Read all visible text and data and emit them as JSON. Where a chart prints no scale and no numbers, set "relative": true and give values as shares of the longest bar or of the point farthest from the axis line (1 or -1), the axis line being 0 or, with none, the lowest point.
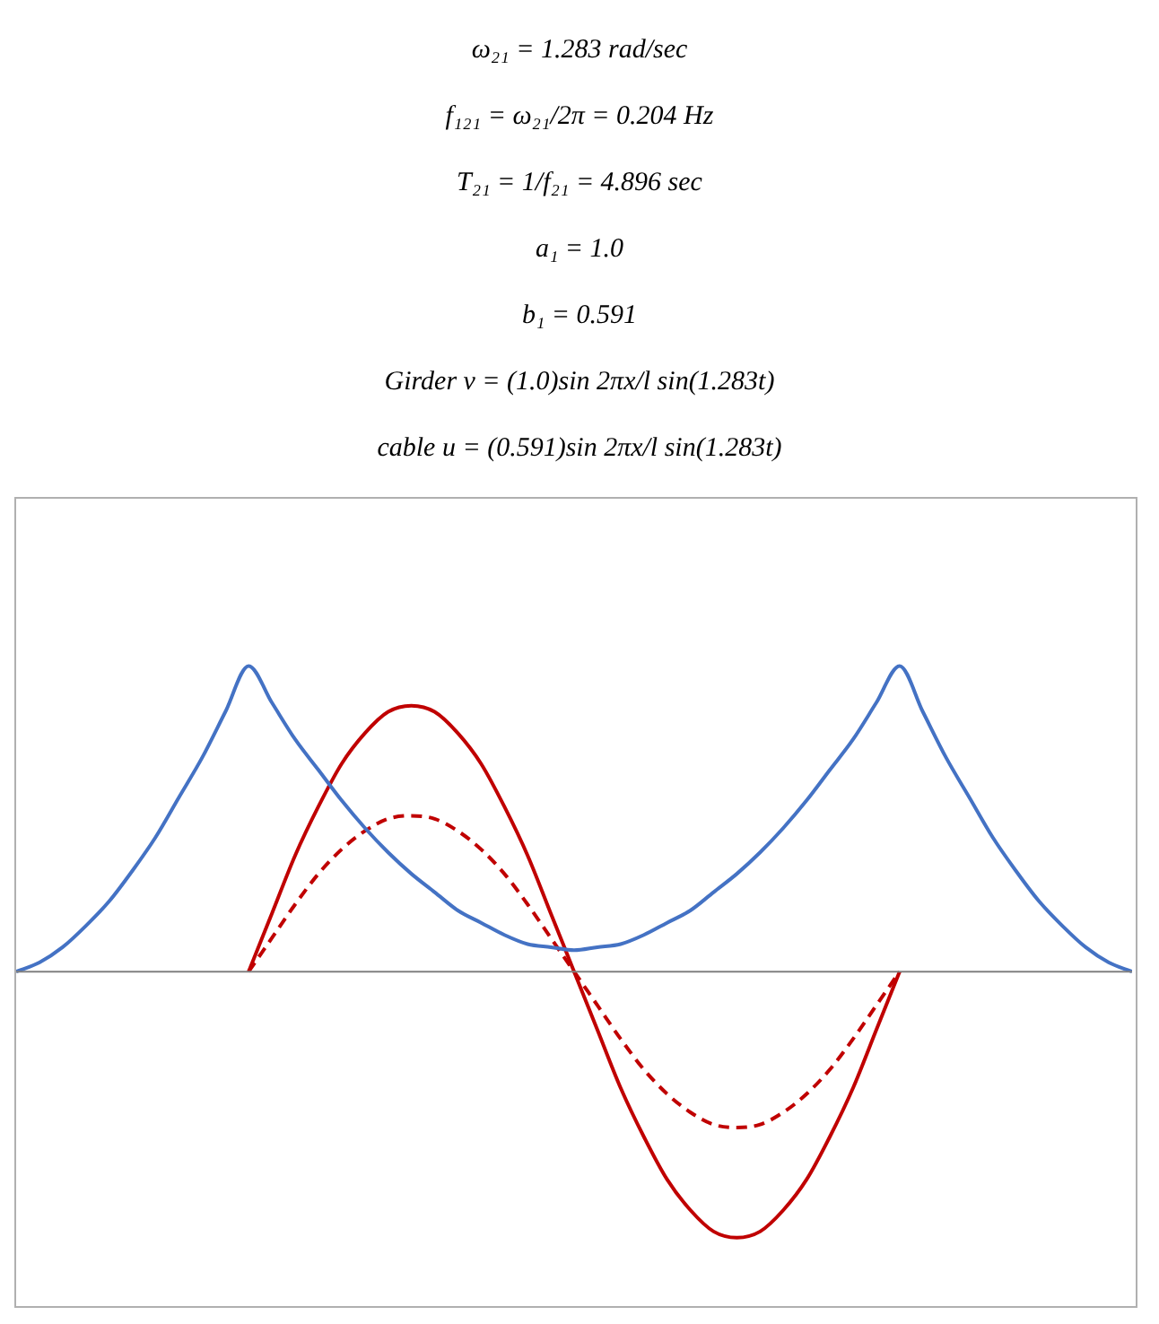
{
  "chart_data": {
    "type": "line",
    "relative": true,
    "annotations": [
      "ω₂₁ = 1.283 rad/sec",
      "f₁₂₁ = ω₂₁/2π = 0.204 Hz",
      "T₂₁ = 1/f₂₁ = 4.896 sec",
      "a₁ = 1.0",
      "b₁ = 0.591",
      "Girder v = (1.0)sin 2πx/l sin(1.283t)",
      "cable u = (0.591)sin 2πx/l sin(1.283t)"
    ],
    "categories": [
      null,
      null,
      null,
      null,
      null,
      null,
      null,
      null,
      null,
      null,
      null,
      null,
      null,
      null,
      null,
      null,
      null,
      null,
      null,
      null,
      null,
      null,
      null,
      null,
      null,
      null,
      null,
      null,
      null,
      null,
      null,
      null,
      null,
      null,
      null,
      null,
      null,
      null,
      null,
      null,
      null,
      null,
      null,
      null,
      null,
      null,
      null,
      null,
      null
    ],
    "marker": "none",
    "grid": false,
    "legend": false,
    "series": [
      {
        "color": "#4472c4",
        "line_style": "solid",
        "values": [
          0,
          0.03,
          0.08,
          0.15,
          0.23,
          0.33,
          0.44,
          0.57,
          0.7,
          0.85,
          1,
          0.88,
          0.76,
          0.66,
          0.56,
          0.47,
          0.39,
          0.32,
          0.26,
          0.2,
          0.16,
          0.12,
          0.09,
          0.08,
          0.07,
          0.08,
          0.09,
          0.12,
          0.16,
          0.2,
          0.26,
          0.32,
          0.39,
          0.47,
          0.56,
          0.66,
          0.76,
          0.88,
          1,
          0.85,
          0.7,
          0.57,
          0.44,
          0.33,
          0.23,
          0.15,
          0.08,
          0.03,
          0
        ]
      },
      {
        "color": "#c00000",
        "line_style": "solid",
        "values": [
          null,
          null,
          null,
          null,
          null,
          null,
          null,
          null,
          null,
          null,
          0,
          0.19,
          0.38,
          0.54,
          0.68,
          0.78,
          0.85,
          0.87,
          0.85,
          0.78,
          0.68,
          0.54,
          0.38,
          0.19,
          0,
          -0.19,
          -0.38,
          -0.54,
          -0.68,
          -0.78,
          -0.85,
          -0.87,
          -0.85,
          -0.78,
          -0.68,
          -0.54,
          -0.38,
          -0.19,
          0,
          null,
          null,
          null,
          null,
          null,
          null,
          null,
          null,
          null,
          null
        ]
      },
      {
        "color": "#c00000",
        "line_style": "dashed",
        "values": [
          null,
          null,
          null,
          null,
          null,
          null,
          null,
          null,
          null,
          null,
          0,
          0.11,
          0.22,
          0.32,
          0.4,
          0.46,
          0.5,
          0.51,
          0.5,
          0.46,
          0.4,
          0.32,
          0.22,
          0.11,
          0,
          -0.11,
          -0.22,
          -0.32,
          -0.4,
          -0.46,
          -0.5,
          -0.51,
          -0.5,
          -0.46,
          -0.4,
          -0.32,
          -0.22,
          -0.11,
          0,
          null,
          null,
          null,
          null,
          null,
          null,
          null,
          null,
          null,
          null
        ]
      }
    ]
  }
}
